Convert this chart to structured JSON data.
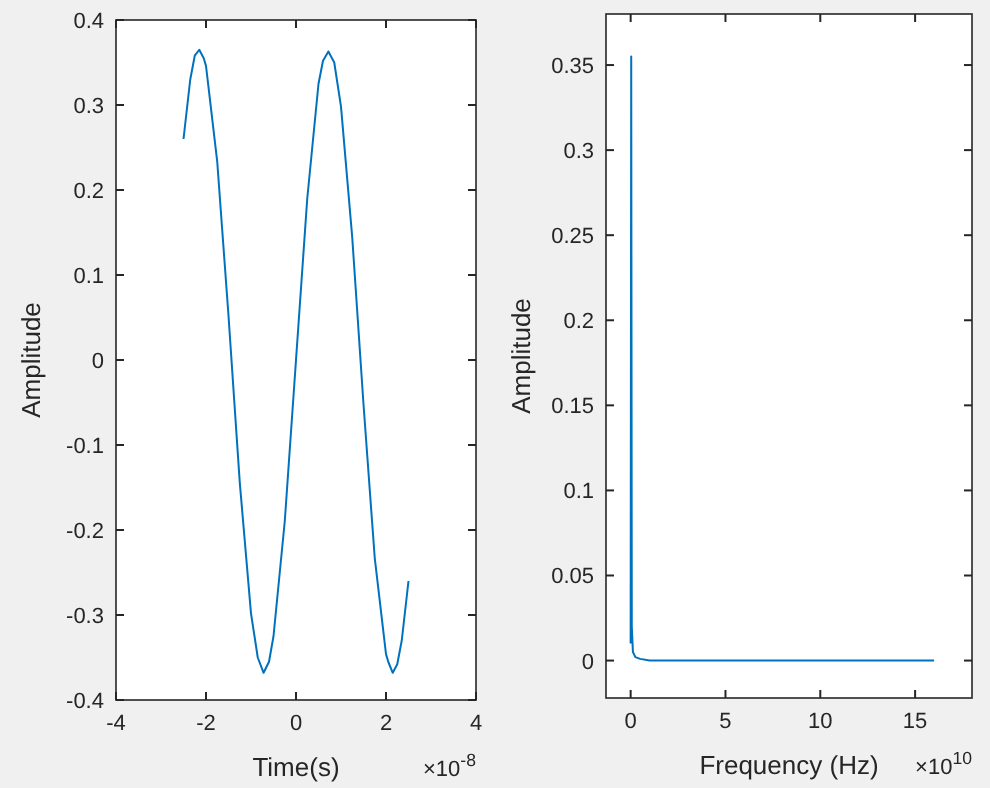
{
  "chart_data": [
    {
      "type": "line",
      "xlabel": "Time(s)",
      "ylabel": "Amplitude",
      "annotations": [
        "×10$^{-8}$"
      ],
      "xlim": [
        -4,
        4
      ],
      "xticks": [
        -4,
        -2,
        0,
        2,
        4
      ],
      "ylim": [
        -0.4,
        0.4
      ],
      "yticks": [
        -0.4,
        -0.3,
        -0.2,
        -0.1,
        0,
        0.1,
        0.2,
        0.3,
        0.4
      ],
      "grid": false,
      "series": [
        {
          "color": "#0072bd",
          "x": [
            -2.5,
            -2.35,
            -2.25,
            -2.15,
            -2.05,
            -2,
            -1.75,
            -1.5,
            -1.25,
            -1,
            -0.85,
            -0.72,
            -0.6,
            -0.5,
            -0.25,
            0,
            0.25,
            0.5,
            0.6,
            0.72,
            0.85,
            1,
            1.25,
            1.5,
            1.75,
            2,
            2.05,
            2.15,
            2.25,
            2.35,
            2.5
          ],
          "values": [
            0.26,
            0.33,
            0.358,
            0.365,
            0.355,
            0.346,
            0.233,
            0.052,
            -0.144,
            -0.298,
            -0.35,
            -0.368,
            -0.355,
            -0.325,
            -0.19,
            0,
            0.19,
            0.325,
            0.352,
            0.363,
            0.35,
            0.298,
            0.144,
            -0.052,
            -0.233,
            -0.346,
            -0.355,
            -0.368,
            -0.358,
            -0.33,
            -0.26
          ]
        }
      ]
    },
    {
      "type": "line",
      "xlabel": "Frequency (Hz)",
      "ylabel": "Amplitude",
      "annotations": [
        "×10$^{10}$"
      ],
      "xlim": [
        -1.3,
        18
      ],
      "xticks": [
        0,
        5,
        10,
        15
      ],
      "ylim": [
        -0.022,
        0.38
      ],
      "yticks": [
        0,
        0.05,
        0.1,
        0.15,
        0.2,
        0.25,
        0.3,
        0.35
      ],
      "grid": false,
      "series": [
        {
          "color": "#0072bd",
          "x": [
            0,
            0.03,
            0.06,
            0.12,
            0.25,
            0.5,
            1,
            5,
            10,
            16
          ],
          "values": [
            0.01,
            0.355,
            0.02,
            0.005,
            0.002,
            0.001,
            0,
            0,
            0,
            0
          ]
        }
      ]
    }
  ]
}
